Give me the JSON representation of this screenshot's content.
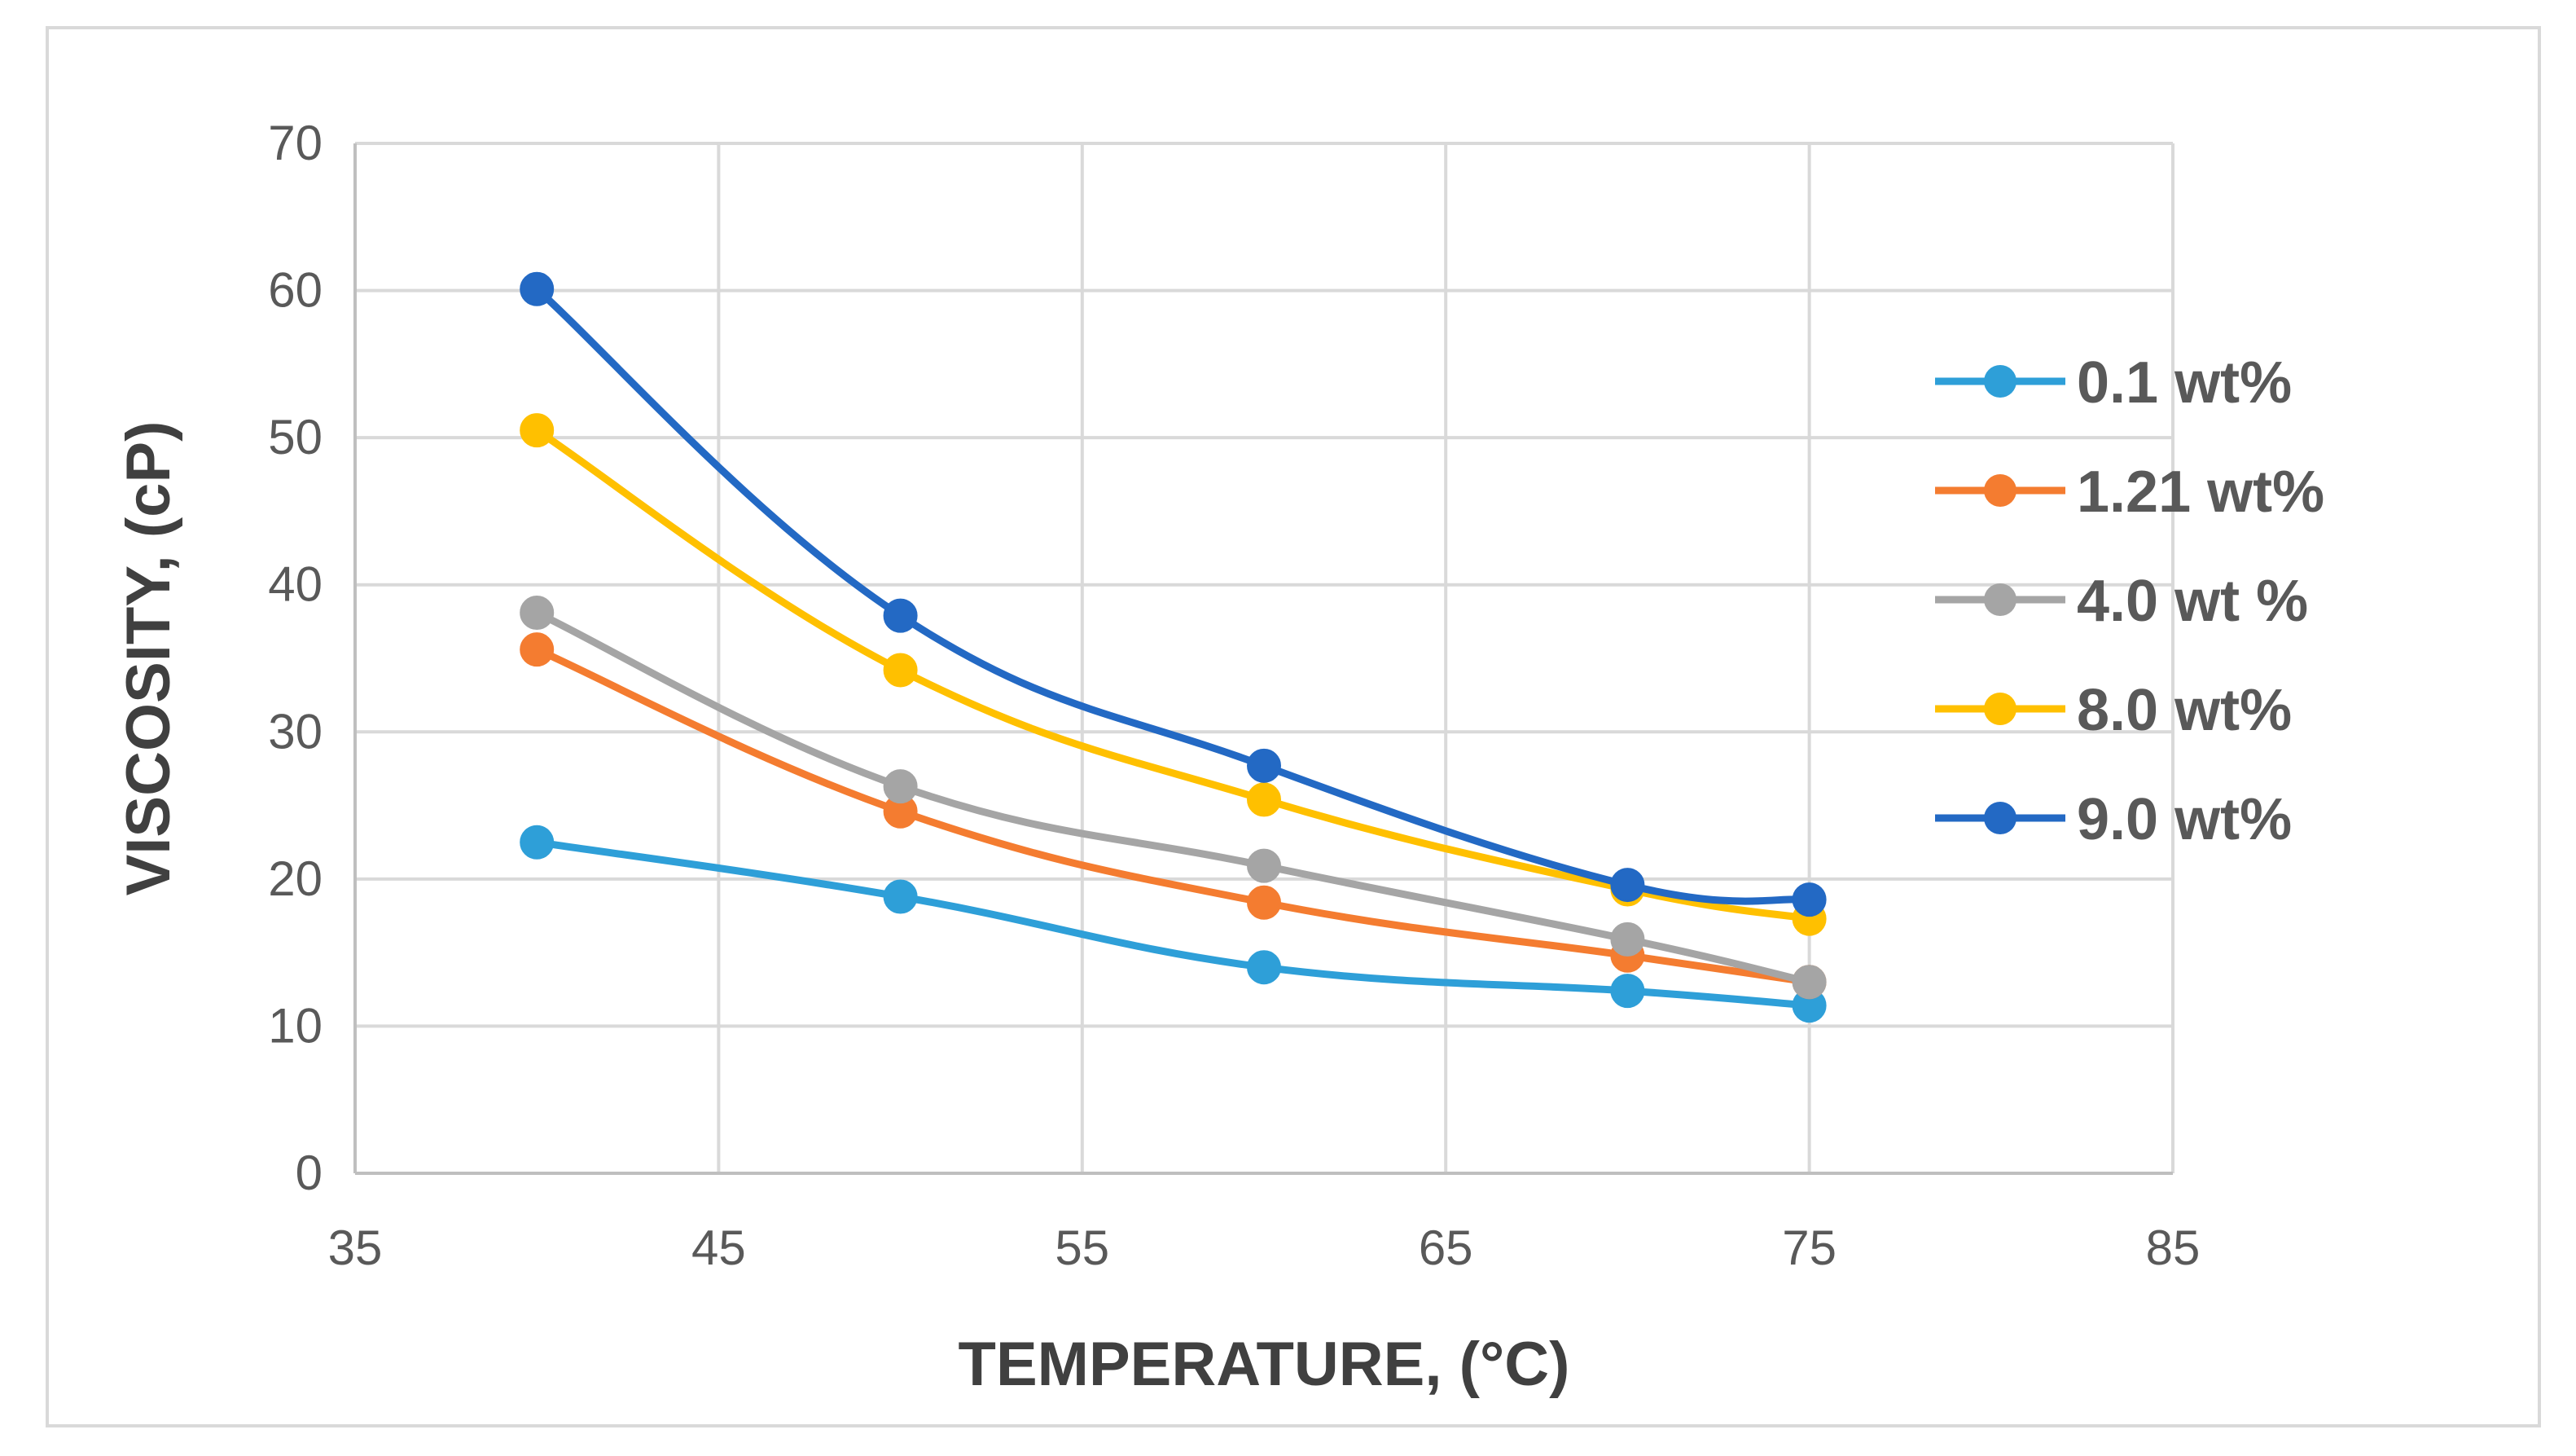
{
  "chart_data": {
    "type": "line",
    "title": "",
    "xlabel": "TEMPERATURE, (°C)",
    "ylabel": "VISCOSITY, (cP)",
    "xlim": [
      35,
      85
    ],
    "ylim": [
      0,
      70
    ],
    "xticks": [
      35,
      45,
      55,
      65,
      75,
      85
    ],
    "yticks": [
      0,
      10,
      20,
      30,
      40,
      50,
      60,
      70
    ],
    "grid": true,
    "legend_position": "right",
    "smooth": true,
    "series": [
      {
        "name": "0.1 wt%",
        "color": "#2e9fd8",
        "x": [
          40,
          50,
          60,
          70,
          75
        ],
        "y": [
          22.5,
          18.8,
          14.0,
          12.4,
          11.4
        ]
      },
      {
        "name": "1.21 wt%",
        "color": "#f47c30",
        "x": [
          40,
          50,
          60,
          70,
          75
        ],
        "y": [
          35.6,
          24.6,
          18.4,
          14.8,
          13.0
        ]
      },
      {
        "name": "4.0 wt %",
        "color": "#a5a5a5",
        "x": [
          40,
          50,
          60,
          70,
          75
        ],
        "y": [
          38.1,
          26.3,
          20.9,
          15.9,
          13.0
        ]
      },
      {
        "name": "8.0 wt%",
        "color": "#ffc000",
        "x": [
          40,
          50,
          60,
          70,
          75
        ],
        "y": [
          50.5,
          34.2,
          25.4,
          19.3,
          17.3
        ]
      },
      {
        "name": "9.0 wt%",
        "color": "#2369c4",
        "x": [
          40,
          50,
          60,
          70,
          75
        ],
        "y": [
          60.1,
          37.9,
          27.7,
          19.6,
          18.6
        ]
      }
    ]
  }
}
